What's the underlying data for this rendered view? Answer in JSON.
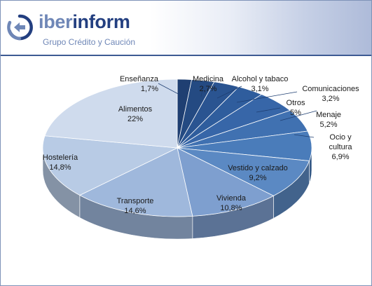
{
  "brand": {
    "name_part1": "iber",
    "name_part2": "inform",
    "tagline": "Grupo Crédito y Caución",
    "accent_light": "#6f87b7",
    "accent_dark": "#233f80"
  },
  "chart_data": {
    "type": "pie",
    "style": "3d",
    "title": "",
    "slices": [
      {
        "label": "Enseñanza",
        "value_label": "1,7%",
        "value": 1.7,
        "color": "#1f3f72"
      },
      {
        "label": "Medicina",
        "value_label": "2,7%",
        "value": 2.7,
        "color": "#244a82"
      },
      {
        "label": "Alcohol y tabaco",
        "value_label": "3,1%",
        "value": 3.1,
        "color": "#2a5491"
      },
      {
        "label": "Comunicaciones",
        "value_label": "3,2%",
        "value": 3.2,
        "color": "#2f5d9d"
      },
      {
        "label": "Otros",
        "value_label": "5%",
        "value": 5.0,
        "color": "#3766a8"
      },
      {
        "label": "Menaje",
        "value_label": "5,2%",
        "value": 5.2,
        "color": "#4071b1"
      },
      {
        "label": "Ocio y cultura",
        "value_label": "6,9%",
        "value": 6.9,
        "color": "#4a7cba"
      },
      {
        "label": "Vestido y calzado",
        "value_label": "9,2%",
        "value": 9.2,
        "color": "#5b89c3"
      },
      {
        "label": "Vivienda",
        "value_label": "10,8%",
        "value": 10.8,
        "color": "#7e9fcf"
      },
      {
        "label": "Transporte",
        "value_label": "14,6%",
        "value": 14.6,
        "color": "#9fb8dc"
      },
      {
        "label": "Hostelería",
        "value_label": "14,8%",
        "value": 14.8,
        "color": "#b8cbe5"
      },
      {
        "label": "Alimentos",
        "value_label": "22%",
        "value": 22.0,
        "color": "#cfdbed"
      }
    ]
  }
}
